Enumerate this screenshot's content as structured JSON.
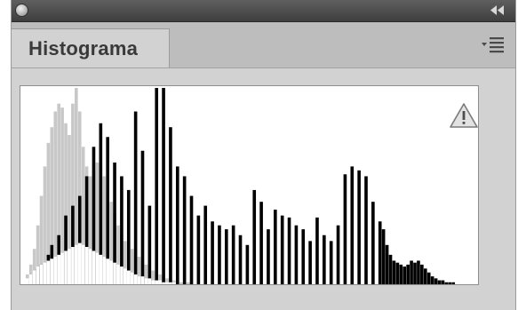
{
  "panel": {
    "tab_label": "Histograma",
    "icons": [
      "close-icon",
      "collapse-double-arrow-icon",
      "panel-menu-icon",
      "warning-triangle-icon"
    ]
  },
  "chart_data": {
    "type": "bar",
    "title": "",
    "xlabel": "",
    "ylabel": "",
    "grid": false,
    "legend": "none",
    "bins": 128,
    "ylim": [
      0,
      100
    ],
    "series": [
      {
        "color": "#000000",
        "values": [
          0,
          2,
          5,
          8,
          10,
          0,
          15,
          20,
          0,
          25,
          0,
          35,
          0,
          40,
          0,
          45,
          0,
          55,
          0,
          70,
          0,
          82,
          0,
          75,
          0,
          62,
          0,
          55,
          0,
          48,
          0,
          88,
          0,
          68,
          0,
          40,
          0,
          100,
          0,
          100,
          0,
          80,
          0,
          60,
          0,
          55,
          0,
          45,
          0,
          35,
          0,
          40,
          0,
          32,
          0,
          30,
          0,
          28,
          0,
          30,
          0,
          25,
          0,
          20,
          0,
          48,
          0,
          42,
          0,
          28,
          0,
          38,
          0,
          35,
          0,
          34,
          0,
          30,
          0,
          28,
          0,
          22,
          0,
          34,
          0,
          25,
          0,
          22,
          0,
          30,
          0,
          56,
          0,
          60,
          0,
          58,
          0,
          55,
          0,
          42,
          0,
          32,
          28,
          20,
          15,
          12,
          11,
          10,
          9,
          10,
          12,
          11,
          12,
          10,
          8,
          6,
          4,
          3,
          2,
          2,
          1,
          1,
          1,
          0,
          0,
          0,
          0,
          0
        ]
      },
      {
        "color": "#c8c8c8",
        "values": [
          5,
          10,
          18,
          30,
          45,
          60,
          72,
          80,
          88,
          92,
          90,
          82,
          76,
          92,
          100,
          88,
          70,
          60,
          55,
          58,
          62,
          60,
          55,
          48,
          42,
          36,
          30,
          26,
          22,
          20,
          18,
          16,
          14,
          12,
          10,
          8,
          7,
          6,
          5,
          4,
          3,
          3,
          2,
          2,
          1,
          1,
          1,
          1,
          0,
          0,
          0,
          0,
          0,
          0,
          0,
          0,
          0,
          0,
          0,
          0,
          0,
          0,
          0,
          0,
          0,
          0,
          0,
          0,
          0,
          0,
          0,
          0,
          0,
          0,
          0,
          0,
          0,
          0,
          0,
          0,
          0,
          0,
          0,
          0,
          0,
          0,
          0,
          0,
          0,
          0,
          0,
          0,
          0,
          0,
          0,
          0,
          0,
          0,
          0,
          0,
          0,
          0,
          0,
          0,
          0,
          0,
          0,
          0,
          0,
          0,
          0,
          0,
          0,
          0,
          0,
          0,
          0,
          0,
          0,
          0,
          0,
          0,
          0,
          0,
          0,
          0,
          0,
          0
        ]
      },
      {
        "color": "#ffffff",
        "values": [
          3,
          5,
          7,
          9,
          10,
          11,
          12,
          13,
          14,
          15,
          16,
          17,
          18,
          19,
          20,
          21,
          20,
          19,
          18,
          17,
          16,
          15,
          14,
          13,
          12,
          11,
          10,
          9,
          8,
          7,
          6,
          5,
          4,
          4,
          3,
          3,
          2,
          2,
          2,
          1,
          1,
          1,
          1,
          0,
          0,
          0,
          0,
          0,
          0,
          0,
          0,
          0,
          0,
          0,
          0,
          0,
          0,
          0,
          0,
          0,
          0,
          0,
          0,
          0,
          0,
          0,
          0,
          0,
          0,
          0,
          0,
          0,
          0,
          0,
          0,
          0,
          0,
          0,
          0,
          0,
          0,
          0,
          0,
          0,
          0,
          0,
          0,
          0,
          0,
          0,
          0,
          0,
          0,
          0,
          0,
          0,
          0,
          0,
          0,
          0,
          0,
          0,
          0,
          0,
          0,
          0,
          0,
          0,
          0,
          0,
          0,
          0,
          0,
          0,
          0,
          0,
          0,
          0,
          0,
          0,
          0,
          0,
          0,
          0,
          0,
          0,
          0,
          0
        ]
      }
    ]
  }
}
